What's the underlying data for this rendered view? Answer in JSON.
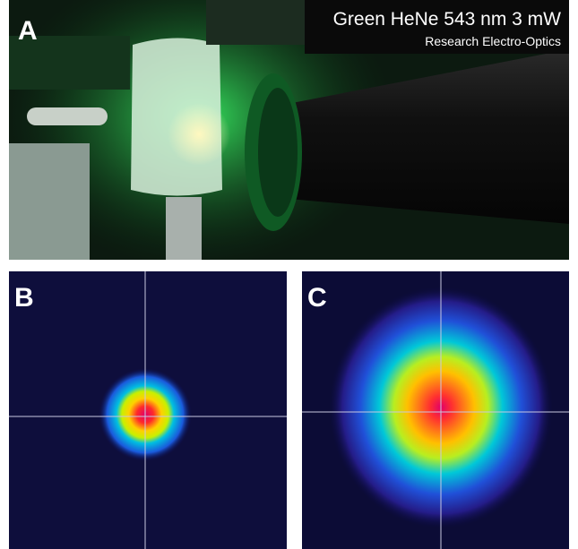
{
  "panels": [
    {
      "label": "A",
      "title": "Green HeNe 543 nm 3 mW",
      "subtitle": "Research Electro-Optics"
    },
    {
      "label": "B"
    },
    {
      "label": "C"
    }
  ]
}
